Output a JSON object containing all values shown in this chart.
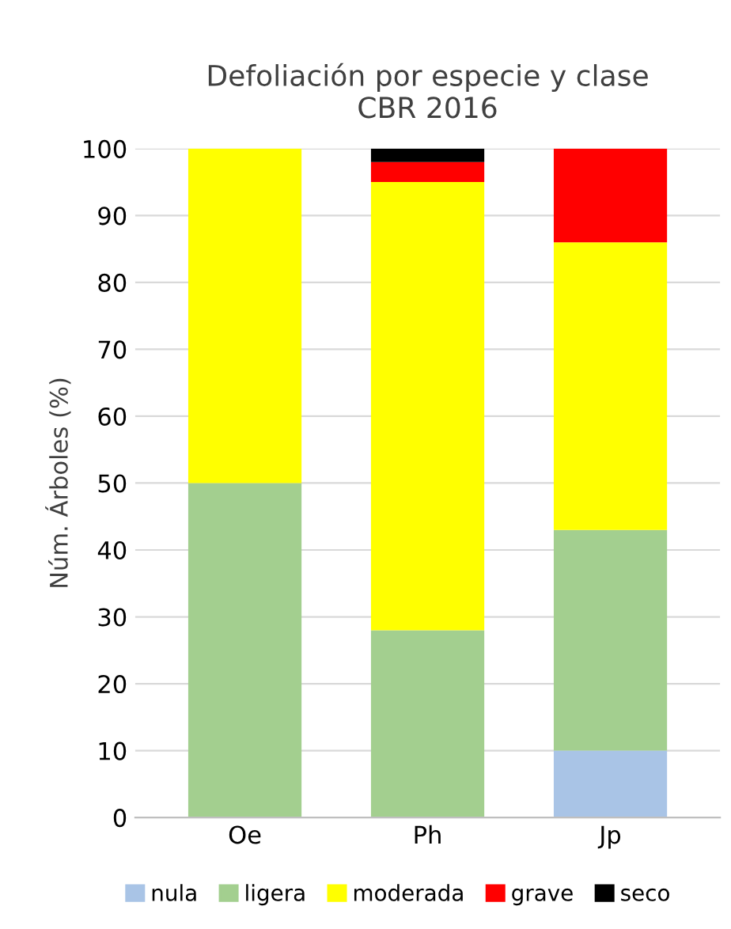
{
  "chart_data": {
    "type": "bar",
    "title": "Defoliación por especie y clase\nCBR 2016",
    "ylabel": "Núm. Árboles (%)",
    "categories": [
      "Oe",
      "Ph",
      "Jp"
    ],
    "stacked": true,
    "series": [
      {
        "name": "nula",
        "color": "#a9c4e6",
        "values": [
          0,
          0,
          10
        ]
      },
      {
        "name": "ligera",
        "color": "#a3cf8f",
        "values": [
          50,
          28,
          33
        ]
      },
      {
        "name": "moderada",
        "color": "#ffff00",
        "values": [
          50,
          67,
          43
        ]
      },
      {
        "name": "grave",
        "color": "#ff0000",
        "values": [
          0,
          3,
          14
        ]
      },
      {
        "name": "seco",
        "color": "#000000",
        "values": [
          0,
          2,
          0
        ]
      }
    ],
    "ylim": [
      0,
      100
    ],
    "yticks": [
      0,
      10,
      20,
      30,
      40,
      50,
      60,
      70,
      80,
      90,
      100
    ],
    "grid": "y",
    "legend": "bottom"
  }
}
